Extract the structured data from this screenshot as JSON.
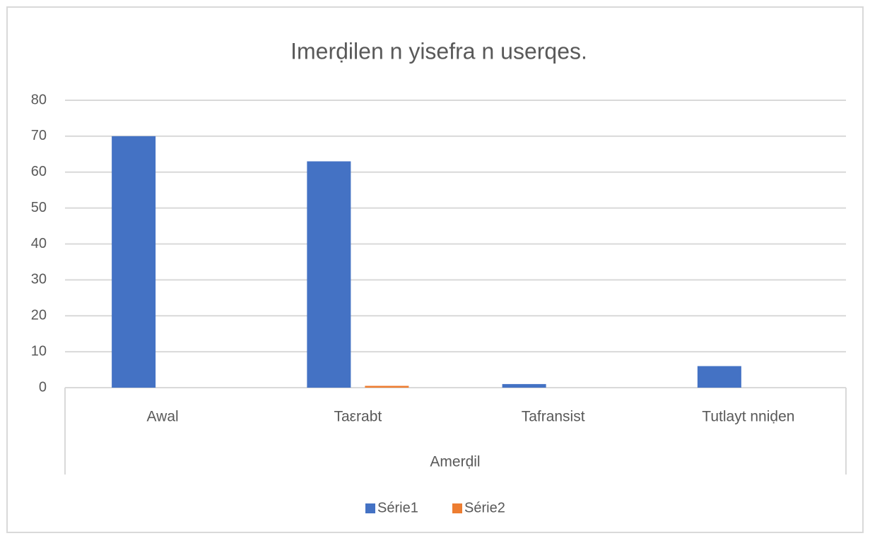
{
  "chart_data": {
    "type": "bar",
    "title": "Imerḍilen n yisefra n userqes.",
    "x_label": "Amerḍil",
    "categories": [
      "Awal",
      "Taεrabt",
      "Tafransist",
      "Tutlayt nniḍen"
    ],
    "series": [
      {
        "name": "Série1",
        "color": "#4472c4",
        "values": [
          70,
          63,
          1,
          6
        ]
      },
      {
        "name": "Série2",
        "color": "#ed7d31",
        "values": [
          0,
          0.5,
          0,
          0
        ]
      }
    ],
    "ylim": [
      0,
      80
    ],
    "yticks": [
      0,
      10,
      20,
      30,
      40,
      50,
      60,
      70,
      80
    ],
    "grid": true,
    "legend": "bottom"
  }
}
